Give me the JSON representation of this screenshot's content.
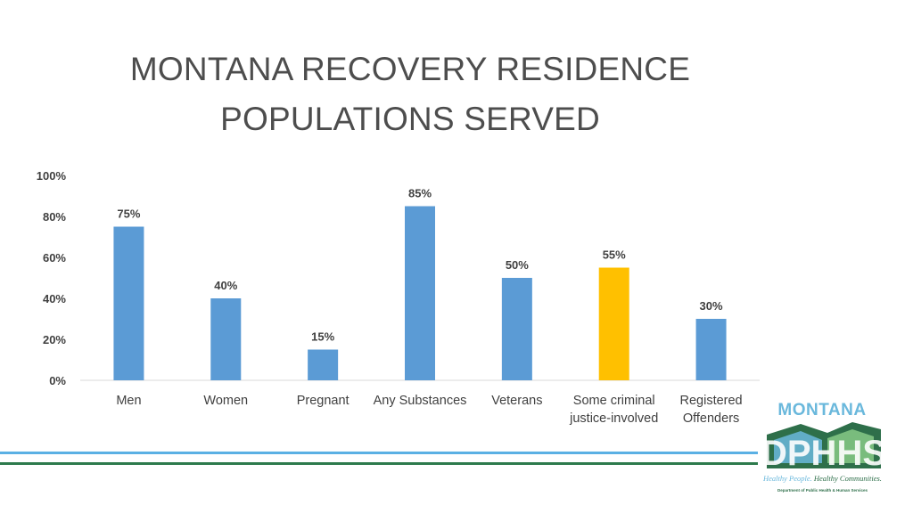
{
  "slide": {
    "title_line1": "MONTANA RECOVERY RESIDENCE",
    "title_line2": "POPULATIONS SERVED"
  },
  "chart_data": {
    "type": "bar",
    "categories": [
      [
        "Men"
      ],
      [
        "Women"
      ],
      [
        "Pregnant"
      ],
      [
        "Any Substances"
      ],
      [
        "Veterans"
      ],
      [
        "Some criminal",
        "justice-involved"
      ],
      [
        "Registered",
        "Offenders"
      ]
    ],
    "values": [
      75,
      40,
      15,
      85,
      50,
      55,
      30
    ],
    "data_labels": [
      "75%",
      "40%",
      "15%",
      "85%",
      "50%",
      "55%",
      "30%"
    ],
    "bar_colors": [
      "#5b9bd5",
      "#5b9bd5",
      "#5b9bd5",
      "#5b9bd5",
      "#5b9bd5",
      "#ffc000",
      "#5b9bd5"
    ],
    "ylim": [
      0,
      100
    ],
    "yticks": [
      0,
      20,
      40,
      60,
      80,
      100
    ],
    "ytick_labels": [
      "0%",
      "20%",
      "40%",
      "60%",
      "80%",
      "100%"
    ],
    "title": "",
    "xlabel": "",
    "ylabel": "",
    "grid": false,
    "legend": "none"
  },
  "logo": {
    "word": "MONTANA",
    "mark_text": "DPHHS",
    "tagline_part1": "Healthy People.",
    "tagline_part2": "Healthy Communities.",
    "dept": "Department of Public Health & Human Services",
    "colors": {
      "blue": "#6ab8dc",
      "green": "#2e6f4a"
    }
  }
}
